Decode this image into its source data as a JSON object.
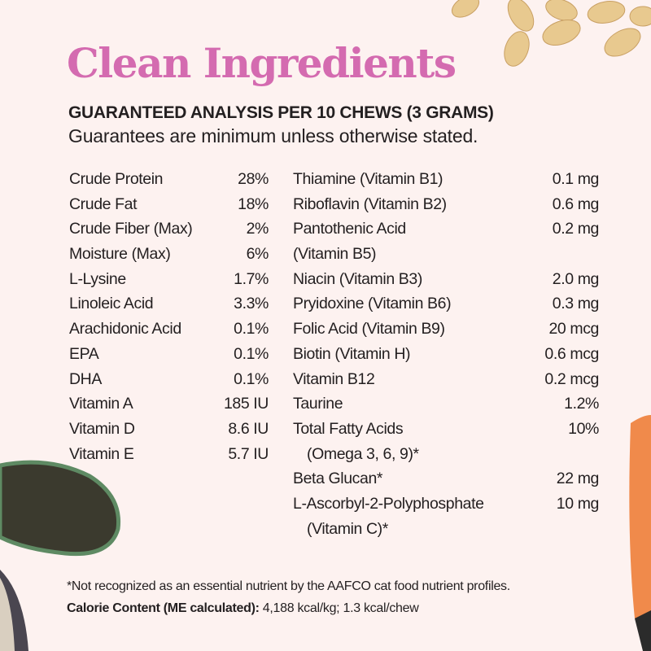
{
  "title": "Clean Ingredients",
  "subtitle": "GUARANTEED ANALYSIS PER 10 CHEWS (3 GRAMS)",
  "note": "Guarantees are minimum unless otherwise stated.",
  "left_column": [
    {
      "label": "Crude Protein",
      "value": "28%"
    },
    {
      "label": "Crude Fat",
      "value": "18%"
    },
    {
      "label": "Crude Fiber (Max)",
      "value": "2%"
    },
    {
      "label": "Moisture (Max)",
      "value": "6%"
    },
    {
      "label": "L-Lysine",
      "value": "1.7%"
    },
    {
      "label": "Linoleic Acid",
      "value": "3.3%"
    },
    {
      "label": "Arachidonic Acid",
      "value": "0.1%"
    },
    {
      "label": "EPA",
      "value": "0.1%"
    },
    {
      "label": "DHA",
      "value": "0.1%"
    },
    {
      "label": "Vitamin A",
      "value": "185 IU"
    },
    {
      "label": "Vitamin D",
      "value": "8.6 IU"
    },
    {
      "label": "Vitamin E",
      "value": "5.7 IU"
    }
  ],
  "right_column": [
    {
      "label": "Thiamine (Vitamin B1)",
      "value": "0.1 mg"
    },
    {
      "label": "Riboflavin (Vitamin B2)",
      "value": "0.6 mg"
    },
    {
      "label": "Pantothenic Acid",
      "value": "0.2 mg",
      "sub": "(Vitamin B5)",
      "sub_indent": false
    },
    {
      "label": "Niacin (Vitamin B3)",
      "value": "2.0 mg"
    },
    {
      "label": "Pryidoxine (Vitamin B6)",
      "value": "0.3 mg"
    },
    {
      "label": "Folic Acid (Vitamin B9)",
      "value": "20 mcg"
    },
    {
      "label": "Biotin (Vitamin H)",
      "value": "0.6 mcg"
    },
    {
      "label": "Vitamin B12",
      "value": "0.2 mcg"
    },
    {
      "label": "Taurine",
      "value": "1.2%"
    },
    {
      "label": "Total Fatty Acids",
      "value": "10%",
      "sub": "(Omega 3, 6, 9)*"
    },
    {
      "label": "Beta Glucan*",
      "value": "22 mg"
    },
    {
      "label": "L-Ascorbyl-2-Polyphosphate",
      "value": "10 mg",
      "sub": "(Vitamin C)*"
    }
  ],
  "footnote": "*Not recognized as an essential nutrient by the AAFCO cat food nutrient profiles.",
  "calorie": {
    "label": "Calorie Content (ME calculated):",
    "value": " 4,188 kcal/kg; 1.3 kcal/chew"
  },
  "colors": {
    "background": "#fdf2f0",
    "title": "#d46bb0",
    "text": "#231f20"
  },
  "decorations": [
    "oat-flakes-image",
    "mussel-image",
    "salmon-image"
  ]
}
